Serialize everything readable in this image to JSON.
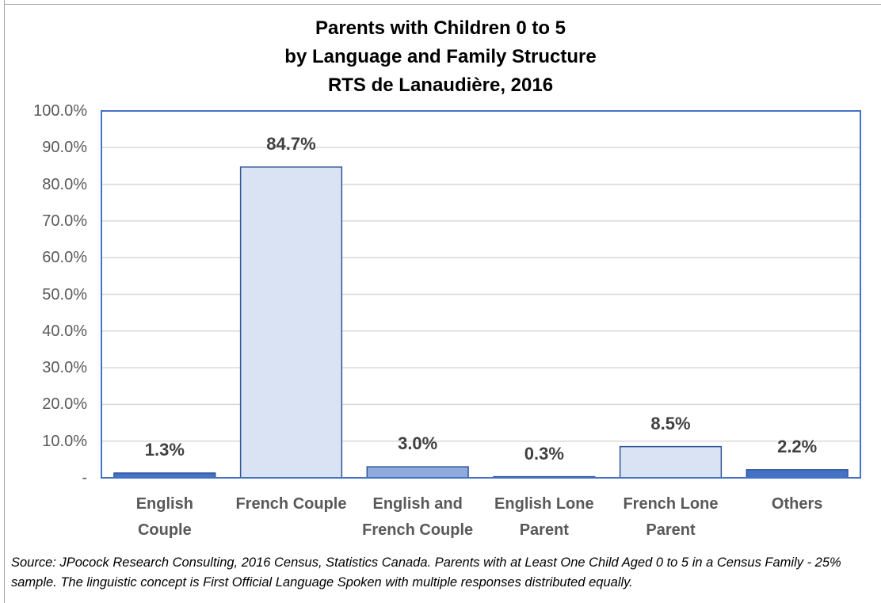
{
  "chart_data": {
    "type": "bar",
    "title": "Parents with Children 0 to 5\nby Language and Family Structure\nRTS de Lanaudière, 2016",
    "categories": [
      "English\nCouple",
      "French Couple",
      "English and\nFrench Couple",
      "English Lone\nParent",
      "French Lone\nParent",
      "Others"
    ],
    "values": [
      1.3,
      84.7,
      3.0,
      0.3,
      8.5,
      2.2
    ],
    "value_labels": [
      "1.3%",
      "84.7%",
      "3.0%",
      "0.3%",
      "8.5%",
      "2.2%"
    ],
    "colors": [
      "#4472c4",
      "#dae3f3",
      "#8faadc",
      "#4472c4",
      "#dae3f3",
      "#4472c4"
    ],
    "ylim": [
      0,
      100
    ],
    "yticks": [
      {
        "value": 0,
        "label": "-"
      },
      {
        "value": 10,
        "label": "10.0%"
      },
      {
        "value": 20,
        "label": "20.0%"
      },
      {
        "value": 30,
        "label": "30.0%"
      },
      {
        "value": 40,
        "label": "40.0%"
      },
      {
        "value": 50,
        "label": "50.0%"
      },
      {
        "value": 60,
        "label": "60.0%"
      },
      {
        "value": 70,
        "label": "70.0%"
      },
      {
        "value": 80,
        "label": "80.0%"
      },
      {
        "value": 90,
        "label": "90.0%"
      },
      {
        "value": 100,
        "label": "100.0%"
      }
    ],
    "grid": true,
    "note": "Source: JPocock Research Consulting, 2016 Census, Statistics Canada. Parents with at Least One Child Aged 0 to 5 in a Census Family - 25% sample. The linguistic concept is First Official Language Spoken with multiple responses distributed equally."
  }
}
